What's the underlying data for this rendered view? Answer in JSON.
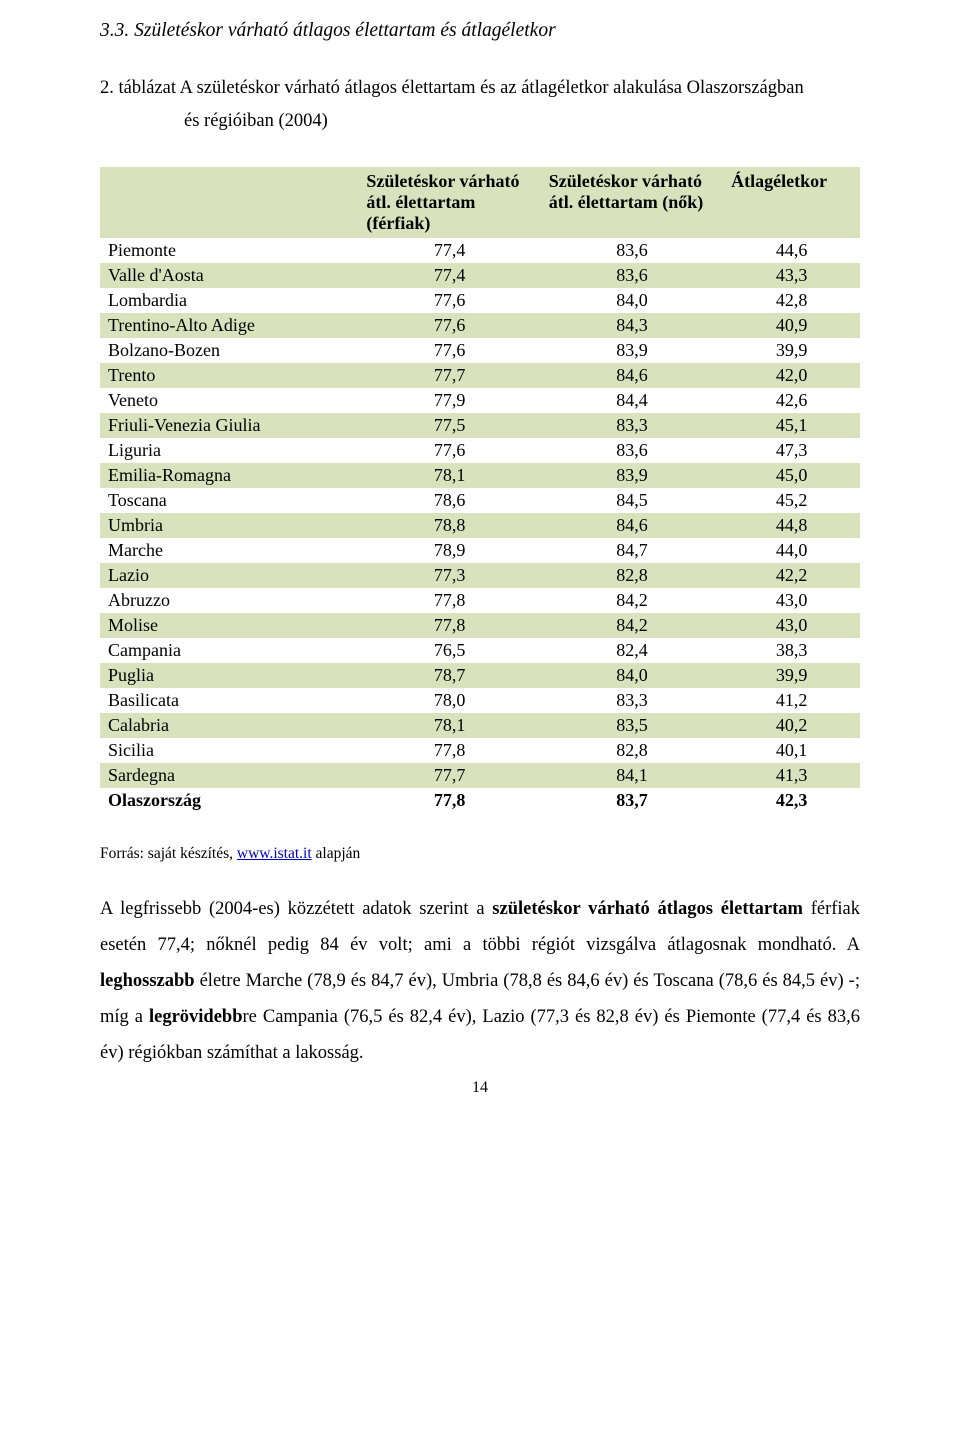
{
  "section_heading": "3.3. Születéskor várható átlagos élettartam és átlagéletkor",
  "table_caption_lead": "2. táblázat ",
  "table_caption_rest": "A születéskor várható átlagos élettartam és az átlagéletkor alakulása Olaszországban és régióiban (2004)",
  "headers": {
    "col1_line1": "Születéskor várható",
    "col1_line2": "átl. élettartam (férfiak)",
    "col2_line1": "Születéskor várható",
    "col2_line2": "átl. élettartam (nők)",
    "col3": "Átlagéletkor"
  },
  "rows": [
    {
      "region": "Piemonte",
      "m": "77,4",
      "f": "83,6",
      "a": "44,6"
    },
    {
      "region": "Valle d'Aosta",
      "m": "77,4",
      "f": "83,6",
      "a": "43,3"
    },
    {
      "region": "Lombardia",
      "m": "77,6",
      "f": "84,0",
      "a": "42,8"
    },
    {
      "region": "Trentino-Alto Adige",
      "m": "77,6",
      "f": "84,3",
      "a": "40,9"
    },
    {
      "region": "Bolzano-Bozen",
      "m": "77,6",
      "f": "83,9",
      "a": "39,9"
    },
    {
      "region": "Trento",
      "m": "77,7",
      "f": "84,6",
      "a": "42,0"
    },
    {
      "region": "Veneto",
      "m": "77,9",
      "f": "84,4",
      "a": "42,6"
    },
    {
      "region": "Friuli-Venezia Giulia",
      "m": "77,5",
      "f": "83,3",
      "a": "45,1"
    },
    {
      "region": "Liguria",
      "m": "77,6",
      "f": "83,6",
      "a": "47,3"
    },
    {
      "region": "Emilia-Romagna",
      "m": "78,1",
      "f": "83,9",
      "a": "45,0"
    },
    {
      "region": "Toscana",
      "m": "78,6",
      "f": "84,5",
      "a": "45,2"
    },
    {
      "region": "Umbria",
      "m": "78,8",
      "f": "84,6",
      "a": "44,8"
    },
    {
      "region": "Marche",
      "m": "78,9",
      "f": "84,7",
      "a": "44,0"
    },
    {
      "region": "Lazio",
      "m": "77,3",
      "f": "82,8",
      "a": "42,2"
    },
    {
      "region": "Abruzzo",
      "m": "77,8",
      "f": "84,2",
      "a": "43,0"
    },
    {
      "region": "Molise",
      "m": "77,8",
      "f": "84,2",
      "a": "43,0"
    },
    {
      "region": "Campania",
      "m": "76,5",
      "f": "82,4",
      "a": "38,3"
    },
    {
      "region": "Puglia",
      "m": "78,7",
      "f": "84,0",
      "a": "39,9"
    },
    {
      "region": "Basilicata",
      "m": "78,0",
      "f": "83,3",
      "a": "41,2"
    },
    {
      "region": "Calabria",
      "m": "78,1",
      "f": "83,5",
      "a": "40,2"
    },
    {
      "region": "Sicilia",
      "m": "77,8",
      "f": "82,8",
      "a": "40,1"
    },
    {
      "region": "Sardegna",
      "m": "77,7",
      "f": "84,1",
      "a": "41,3"
    },
    {
      "region": "Olaszország",
      "m": "77,8",
      "f": "83,7",
      "a": "42,3",
      "bold": true
    }
  ],
  "source_prefix": "Forrás: saját készítés, ",
  "source_link_text": "www.istat.it",
  "source_suffix": " alapján",
  "paragraph": "A legfrissebb (2004-es) közzétett adatok szerint a születéskor várható átlagos élettartam férfiak esetén 77,4; nőknél pedig 84 év volt; ami a többi régiót vizsgálva átlagosnak mondható. A leghosszabb életre Marche (78,9 és 84,7 év), Umbria (78,8 és 84,6 év) és Toscana (78,6 és 84,5 év) -; míg a legrövidebbre Campania (76,5 és 82,4 év), Lazio (77,3 és 82,8 év) és Piemonte (77,4 és 83,6 év) régiókban számíthat a lakosság.",
  "page_number": "14",
  "colors": {
    "row_alt_bg": "#d9e2bd",
    "link": "#0000c0"
  }
}
